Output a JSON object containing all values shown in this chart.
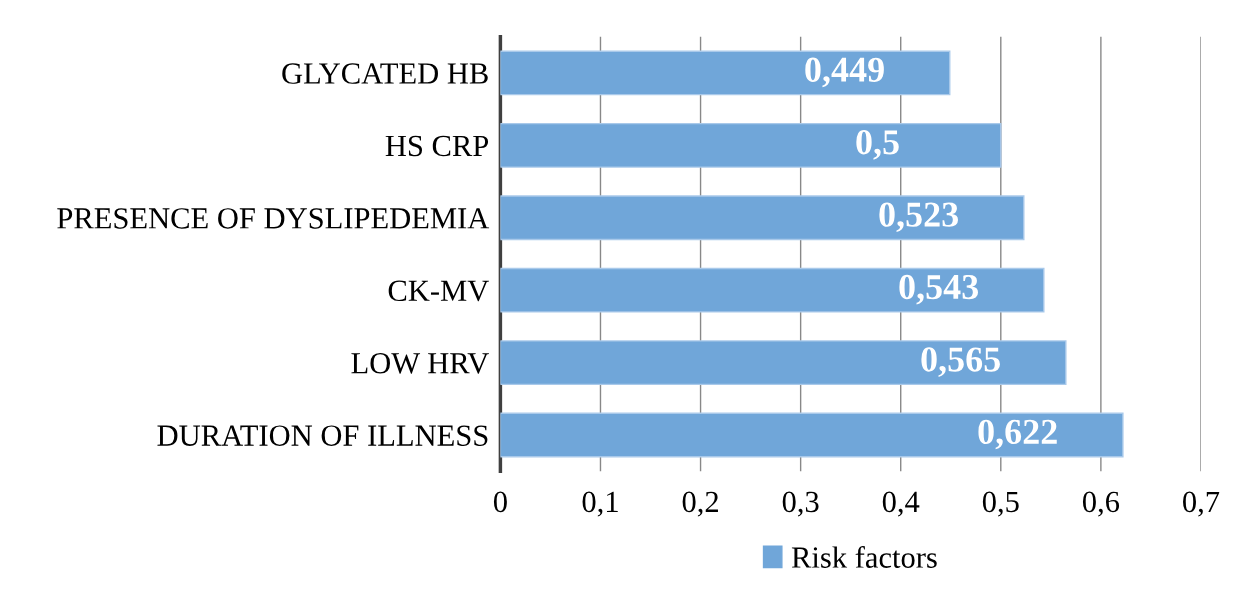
{
  "chart_data": {
    "type": "bar",
    "orientation": "horizontal",
    "categories": [
      "GLYCATED HB",
      "HS CRP",
      "PRESENCE OF DYSLIPEDEMIA",
      "CK-MV",
      "LOW HRV",
      "DURATION OF ILLNESS"
    ],
    "series": [
      {
        "name": "Risk factors",
        "color": "#70a6d9",
        "values": [
          0.449,
          0.5,
          0.523,
          0.543,
          0.565,
          0.622
        ],
        "value_labels": [
          "0,449",
          "0,5",
          "0,523",
          "0,543",
          "0,565",
          "0,622"
        ]
      }
    ],
    "xlim": [
      0,
      0.7
    ],
    "xticks": [
      0,
      {
        "value": 0.1,
        "label": "0,1"
      },
      {
        "value": 0.2,
        "label": "0,2"
      },
      {
        "value": 0.3,
        "label": "0,3"
      },
      {
        "value": 0.4,
        "label": "0,4"
      },
      {
        "value": 0.5,
        "label": "0,5"
      },
      {
        "value": 0.6,
        "label": "0,6"
      },
      {
        "value": 0.7,
        "label": "0,7"
      }
    ],
    "grid": "x",
    "legend": "bottom"
  }
}
